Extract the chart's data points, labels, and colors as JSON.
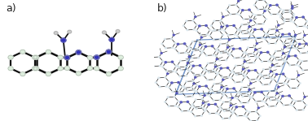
{
  "panel_a_label": "a)",
  "panel_b_label": "b)",
  "label_fontsize": 9,
  "label_color": "#222222",
  "background_color": "#ffffff",
  "fig_width": 3.78,
  "fig_height": 1.49,
  "dpi": 100,
  "mol_bond_color": "#111111",
  "mol_atom_color": "#ddeedd",
  "mol_N_color": "#3333bb",
  "mol_green_color": "#22aa22",
  "crystal_line_color": "#7799cc",
  "crystal_mol_color": "#111111",
  "crystal_atom_color": "#ccccee",
  "crystal_N_color": "#5555bb"
}
